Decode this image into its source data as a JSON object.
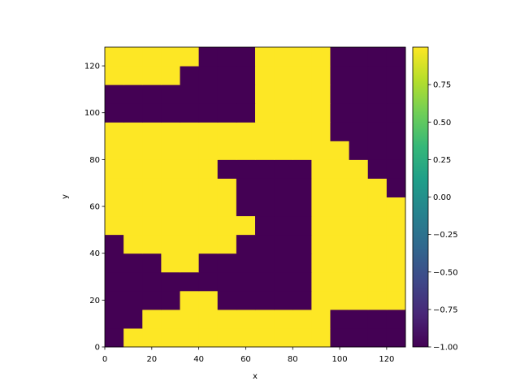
{
  "chart_data": {
    "type": "heatmap",
    "xlabel": "x",
    "ylabel": "y",
    "colormap": "viridis",
    "xlim": [
      0,
      128
    ],
    "ylim": [
      0,
      128
    ],
    "xticks": [
      0,
      20,
      40,
      60,
      80,
      100,
      120
    ],
    "yticks": [
      0,
      20,
      40,
      60,
      80,
      100,
      120
    ],
    "z": [
      [
        -1,
        1,
        1,
        1,
        1,
        1,
        1,
        1,
        1,
        1,
        1,
        1,
        -1,
        -1,
        -1,
        -1
      ],
      [
        -1,
        -1,
        1,
        1,
        1,
        1,
        1,
        1,
        1,
        1,
        1,
        1,
        -1,
        -1,
        -1,
        -1
      ],
      [
        -1,
        -1,
        -1,
        -1,
        1,
        1,
        -1,
        -1,
        -1,
        -1,
        -1,
        1,
        1,
        1,
        1,
        1
      ],
      [
        -1,
        -1,
        -1,
        -1,
        -1,
        -1,
        -1,
        -1,
        -1,
        -1,
        -1,
        1,
        1,
        1,
        1,
        1
      ],
      [
        -1,
        -1,
        -1,
        1,
        1,
        -1,
        -1,
        -1,
        -1,
        -1,
        -1,
        1,
        1,
        1,
        1,
        1
      ],
      [
        -1,
        1,
        1,
        1,
        1,
        1,
        1,
        -1,
        -1,
        -1,
        -1,
        1,
        1,
        1,
        1,
        1
      ],
      [
        1,
        1,
        1,
        1,
        1,
        1,
        1,
        1,
        -1,
        -1,
        -1,
        1,
        1,
        1,
        1,
        1
      ],
      [
        1,
        1,
        1,
        1,
        1,
        1,
        1,
        -1,
        -1,
        -1,
        -1,
        1,
        1,
        1,
        1,
        1
      ],
      [
        1,
        1,
        1,
        1,
        1,
        1,
        1,
        -1,
        -1,
        -1,
        -1,
        1,
        1,
        1,
        1,
        -1
      ],
      [
        1,
        1,
        1,
        1,
        1,
        1,
        -1,
        -1,
        -1,
        -1,
        -1,
        1,
        1,
        1,
        -1,
        -1
      ],
      [
        1,
        1,
        1,
        1,
        1,
        1,
        1,
        1,
        1,
        1,
        1,
        1,
        1,
        -1,
        -1,
        -1
      ],
      [
        1,
        1,
        1,
        1,
        1,
        1,
        1,
        1,
        1,
        1,
        1,
        1,
        -1,
        -1,
        -1,
        -1
      ],
      [
        -1,
        -1,
        -1,
        -1,
        -1,
        -1,
        -1,
        -1,
        1,
        1,
        1,
        1,
        -1,
        -1,
        -1,
        -1
      ],
      [
        -1,
        -1,
        -1,
        -1,
        -1,
        -1,
        -1,
        -1,
        1,
        1,
        1,
        1,
        -1,
        -1,
        -1,
        -1
      ],
      [
        1,
        1,
        1,
        1,
        -1,
        -1,
        -1,
        -1,
        1,
        1,
        1,
        1,
        -1,
        -1,
        -1,
        -1
      ],
      [
        1,
        1,
        1,
        1,
        1,
        -1,
        -1,
        -1,
        1,
        1,
        1,
        1,
        -1,
        -1,
        -1,
        -1
      ]
    ],
    "clim": [
      -1,
      1
    ],
    "cticks": [
      {
        "value": -1,
        "label": "−1.00"
      },
      {
        "value": -0.75,
        "label": "−0.75"
      },
      {
        "value": -0.5,
        "label": "−0.50"
      },
      {
        "value": -0.25,
        "label": "−0.25"
      },
      {
        "value": 0,
        "label": "0.00"
      },
      0.25,
      {
        "value": 0.5,
        "label": "0.50"
      },
      0.75
    ]
  }
}
